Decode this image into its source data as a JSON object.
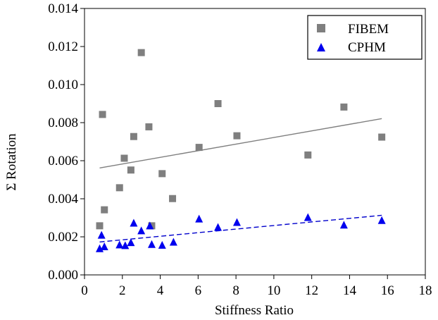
{
  "chart_data": {
    "type": "scatter",
    "xlabel": "Stiffness Ratio",
    "ylabel": "Σ Rotation",
    "xlim": [
      0,
      18
    ],
    "ylim": [
      0,
      0.014
    ],
    "x_ticks": [
      0,
      2,
      4,
      6,
      8,
      10,
      12,
      14,
      16,
      18
    ],
    "y_ticks": [
      0.0,
      0.002,
      0.004,
      0.006,
      0.008,
      0.01,
      0.012,
      0.014
    ],
    "x_tick_labels": [
      "0",
      "2",
      "4",
      "6",
      "8",
      "10",
      "12",
      "14",
      "16",
      "18"
    ],
    "y_tick_labels": [
      "0.000",
      "0.002",
      "0.004",
      "0.006",
      "0.008",
      "0.010",
      "0.012",
      "0.014"
    ],
    "grid": false,
    "legend_position": "top-right",
    "series": [
      {
        "name": "FIBEM",
        "marker": "square",
        "color": "#7f7f7f",
        "points": [
          [
            0.8,
            0.00258
          ],
          [
            0.95,
            0.00843
          ],
          [
            1.05,
            0.00342
          ],
          [
            1.85,
            0.00458
          ],
          [
            2.1,
            0.00613
          ],
          [
            2.45,
            0.00551
          ],
          [
            2.6,
            0.00727
          ],
          [
            3.0,
            0.01168
          ],
          [
            3.4,
            0.00778
          ],
          [
            3.55,
            0.00258
          ],
          [
            4.1,
            0.00532
          ],
          [
            4.65,
            0.00401
          ],
          [
            6.05,
            0.0067
          ],
          [
            7.05,
            0.009
          ],
          [
            8.05,
            0.00731
          ],
          [
            11.8,
            0.0063
          ],
          [
            13.7,
            0.00882
          ],
          [
            15.7,
            0.00724
          ]
        ],
        "trendline": {
          "x": [
            0.8,
            15.7
          ],
          "y": [
            0.00562,
            0.00821
          ],
          "style": "solid",
          "color": "#7f7f7f"
        }
      },
      {
        "name": "CPHM",
        "marker": "triangle",
        "color": "#0000ee",
        "points": [
          [
            0.8,
            0.00138
          ],
          [
            0.9,
            0.00209
          ],
          [
            1.05,
            0.00148
          ],
          [
            1.85,
            0.00158
          ],
          [
            2.15,
            0.00154
          ],
          [
            2.45,
            0.0017
          ],
          [
            2.6,
            0.00272
          ],
          [
            3.0,
            0.00232
          ],
          [
            3.45,
            0.00258
          ],
          [
            3.55,
            0.0016
          ],
          [
            4.1,
            0.00156
          ],
          [
            4.7,
            0.00172
          ],
          [
            6.05,
            0.00294
          ],
          [
            7.05,
            0.0025
          ],
          [
            8.05,
            0.00276
          ],
          [
            11.8,
            0.00302
          ],
          [
            13.7,
            0.00262
          ],
          [
            15.7,
            0.00286
          ]
        ],
        "trendline": {
          "x": [
            0.8,
            15.7
          ],
          "y": [
            0.00173,
            0.00313
          ],
          "style": "dashed",
          "color": "#0000cc"
        }
      }
    ]
  }
}
